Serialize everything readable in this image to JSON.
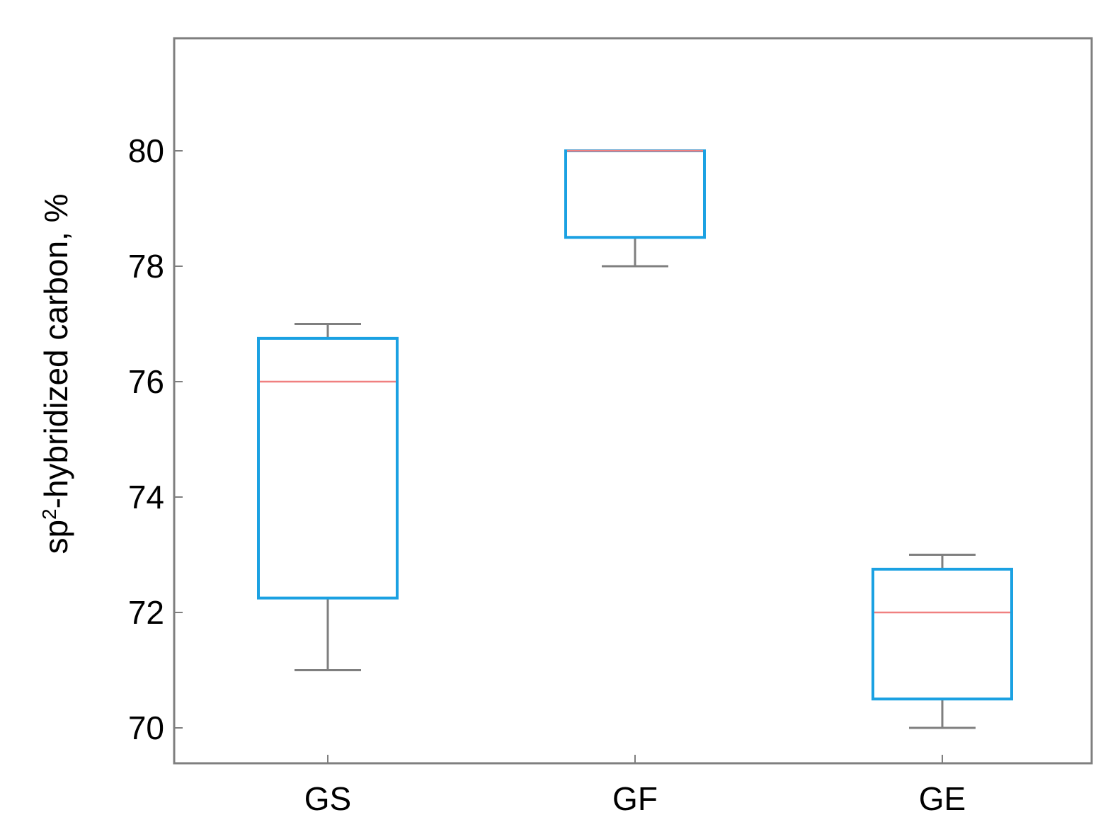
{
  "chart_data": {
    "type": "box",
    "categories": [
      "GS",
      "GF",
      "GE"
    ],
    "boxes": [
      {
        "category": "GS",
        "whisker_low": 71,
        "q1": 72.25,
        "median": 76,
        "q3": 76.75,
        "whisker_high": 77
      },
      {
        "category": "GF",
        "whisker_low": 78,
        "q1": 78.5,
        "median": 80,
        "q3": 80,
        "whisker_high": 80
      },
      {
        "category": "GE",
        "whisker_low": 70,
        "q1": 70.5,
        "median": 72,
        "q3": 72.75,
        "whisker_high": 73
      }
    ],
    "yticks": [
      70,
      72,
      74,
      76,
      78,
      80
    ],
    "ylim": [
      69.4,
      82
    ],
    "ylabel_prefix": "sp",
    "ylabel_superscript": "2",
    "ylabel_suffix": "-hybridized carbon, %",
    "xlabel": "",
    "title": "",
    "grid": false,
    "colors": {
      "box": "#1ba1e2",
      "median": "#f08080",
      "whisker": "#7f7f7f",
      "axes": "#7f7f7f"
    }
  }
}
